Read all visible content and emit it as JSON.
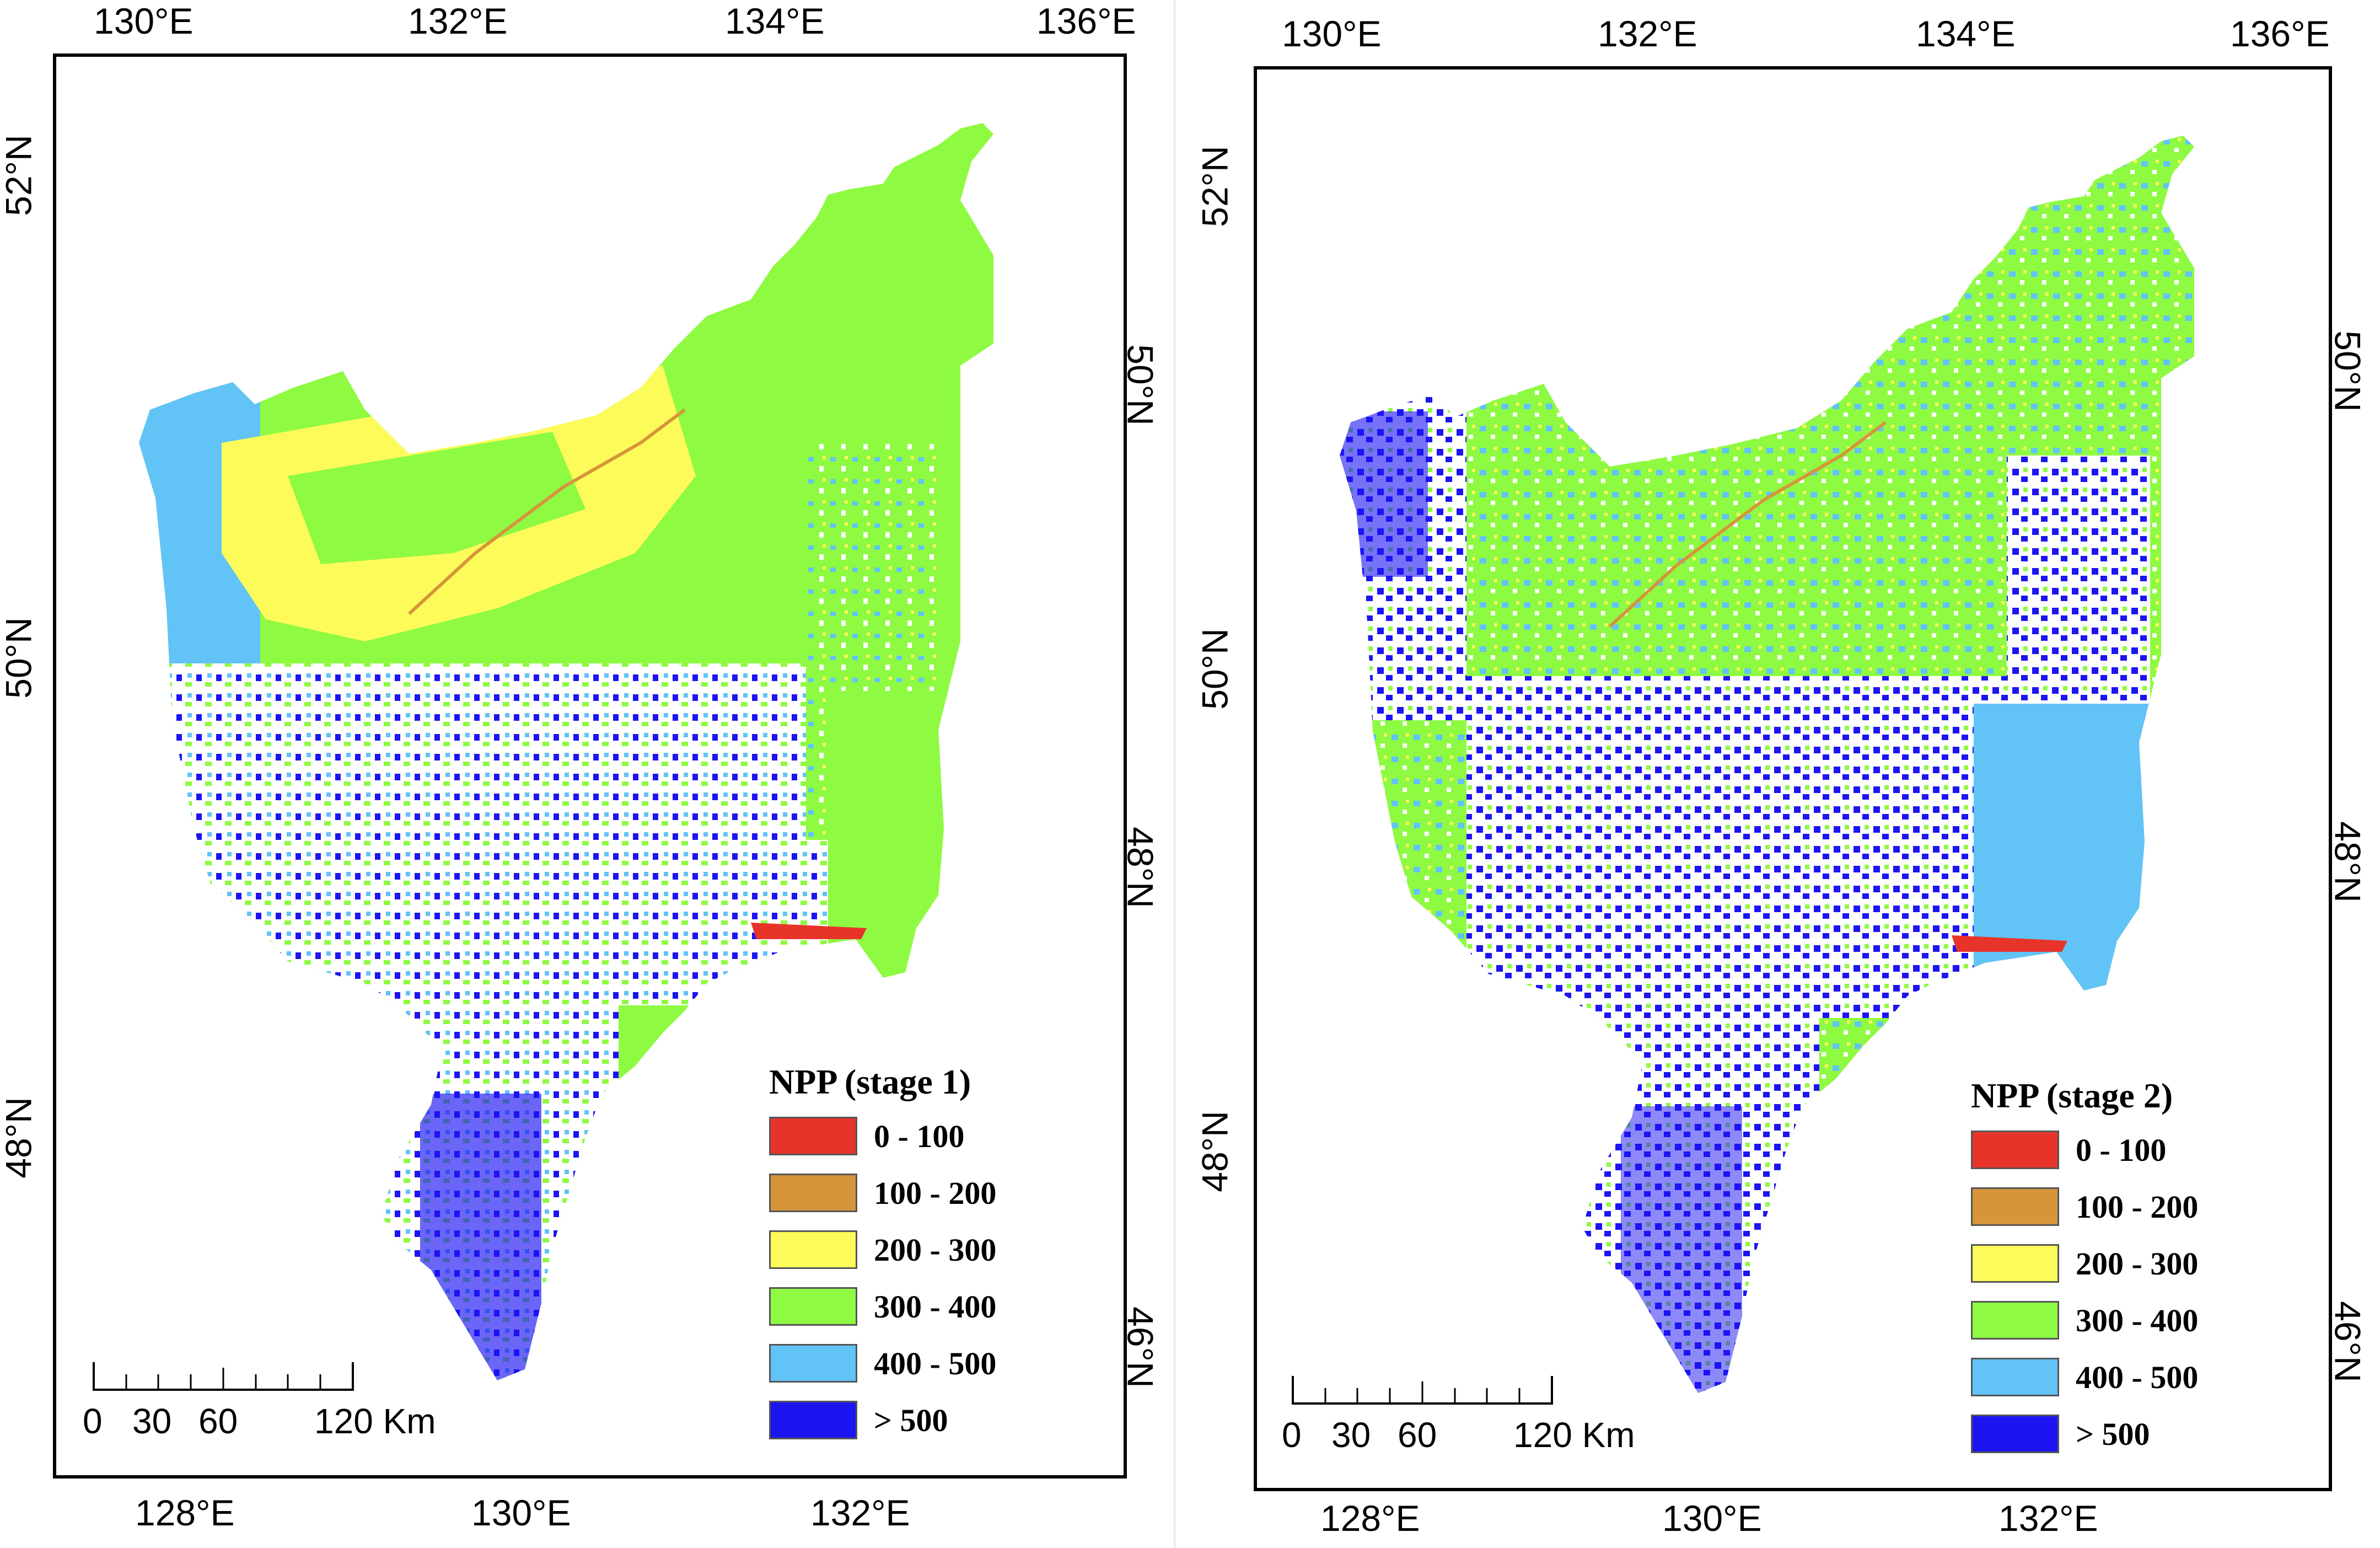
{
  "panels": [
    {
      "top_ticks": [
        "130°E",
        "132°E",
        "134°E",
        "136°E"
      ],
      "bottom_ticks": [
        "128°E",
        "130°E",
        "132°E"
      ],
      "left_ticks": [
        "52°N",
        "50°N",
        "48°N"
      ],
      "right_ticks": [
        "50°N",
        "48°N",
        "46°N"
      ],
      "legend": {
        "title": "NPP (stage 1)",
        "classes": [
          {
            "label": "0 - 100",
            "color": "#e8332a"
          },
          {
            "label": "100 - 200",
            "color": "#d6953a"
          },
          {
            "label": "200 - 300",
            "color": "#fdfb5a"
          },
          {
            "label": "300 - 400",
            "color": "#8efa42"
          },
          {
            "label": "400 - 500",
            "color": "#62c3f7"
          },
          {
            "label": "> 500",
            "color": "#1c14f2"
          }
        ]
      },
      "scalebar": {
        "labels": [
          "0",
          "30",
          "60",
          "120 Km"
        ]
      }
    },
    {
      "top_ticks": [
        "130°E",
        "132°E",
        "134°E",
        "136°E"
      ],
      "bottom_ticks": [
        "128°E",
        "130°E",
        "132°E"
      ],
      "left_ticks": [
        "52°N",
        "50°N",
        "48°N"
      ],
      "right_ticks": [
        "50°N",
        "48°N",
        "46°N"
      ],
      "legend": {
        "title": "NPP (stage 2)",
        "classes": [
          {
            "label": "0 - 100",
            "color": "#e8332a"
          },
          {
            "label": "100 - 200",
            "color": "#d6953a"
          },
          {
            "label": "200 - 300",
            "color": "#fdfb5a"
          },
          {
            "label": "300 - 400",
            "color": "#8efa42"
          },
          {
            "label": "400 - 500",
            "color": "#62c3f7"
          },
          {
            "label": "> 500",
            "color": "#1c14f2"
          }
        ]
      },
      "scalebar": {
        "labels": [
          "0",
          "30",
          "60",
          "120 Km"
        ]
      }
    }
  ]
}
